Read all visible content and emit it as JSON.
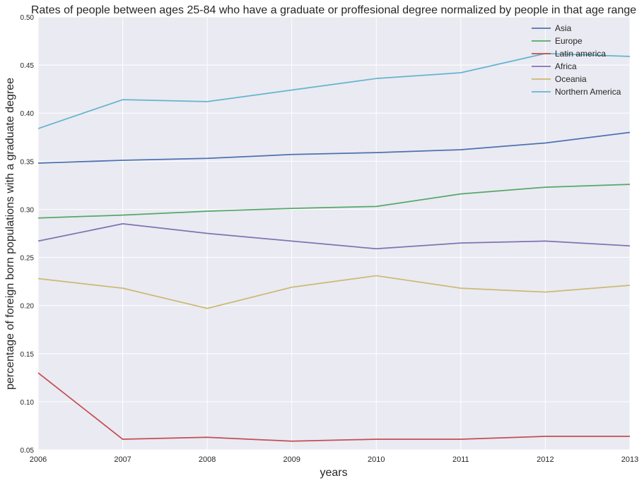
{
  "chart_data": {
    "type": "line",
    "title": "Rates of people between ages 25-84 who have a graduate or proffesional degree normalized by people in that age range",
    "xlabel": "years",
    "ylabel": "percentage of foreign born populations with a graduate degree",
    "x": [
      2006,
      2007,
      2008,
      2009,
      2010,
      2011,
      2012,
      2013
    ],
    "xlim": [
      2006,
      2013
    ],
    "ylim": [
      0.05,
      0.5
    ],
    "x_ticks": [
      "2006",
      "2007",
      "2008",
      "2009",
      "2010",
      "2011",
      "2012",
      "2013"
    ],
    "y_ticks": [
      "0.05",
      "0.10",
      "0.15",
      "0.20",
      "0.25",
      "0.30",
      "0.35",
      "0.40",
      "0.45",
      "0.50"
    ],
    "y_tick_values": [
      0.05,
      0.1,
      0.15,
      0.2,
      0.25,
      0.3,
      0.35,
      0.4,
      0.45,
      0.5
    ],
    "grid": true,
    "legend_position": "top-right",
    "series": [
      {
        "name": "Asia",
        "color": "#4c72b0",
        "values": [
          0.348,
          0.351,
          0.353,
          0.357,
          0.359,
          0.362,
          0.369,
          0.38
        ]
      },
      {
        "name": "Europe",
        "color": "#55a868",
        "values": [
          0.291,
          0.294,
          0.298,
          0.301,
          0.303,
          0.316,
          0.323,
          0.326
        ]
      },
      {
        "name": "Latin america",
        "color": "#c44e52",
        "values": [
          0.13,
          0.061,
          0.063,
          0.059,
          0.061,
          0.061,
          0.064,
          0.064
        ]
      },
      {
        "name": "Africa",
        "color": "#8172b2",
        "values": [
          0.267,
          0.285,
          0.275,
          0.267,
          0.259,
          0.265,
          0.267,
          0.262
        ]
      },
      {
        "name": "Oceania",
        "color": "#ccb974",
        "values": [
          0.228,
          0.218,
          0.197,
          0.219,
          0.231,
          0.218,
          0.214,
          0.221
        ]
      },
      {
        "name": "Northern America",
        "color": "#64b5cd",
        "values": [
          0.384,
          0.414,
          0.412,
          0.424,
          0.436,
          0.442,
          0.462,
          0.459
        ]
      }
    ]
  }
}
